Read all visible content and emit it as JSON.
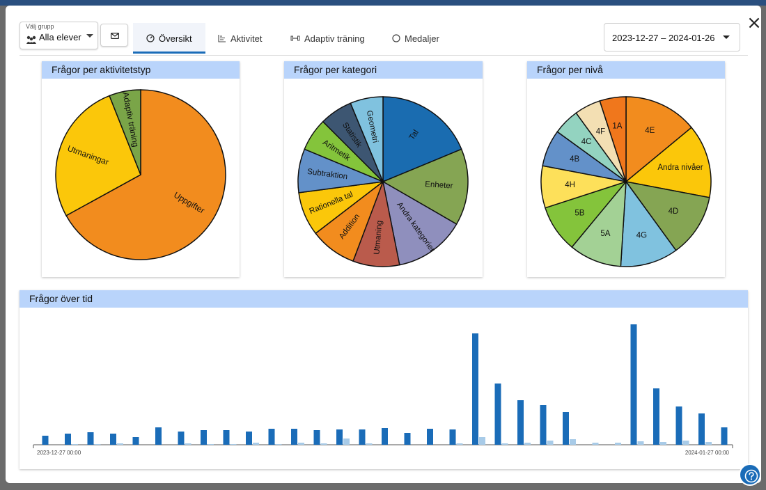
{
  "header": {
    "group_label": "Välj grupp",
    "group_value": "Alla elever",
    "date_range": "2023-12-27 – 2024-01-26",
    "tabs": [
      {
        "label": "Översikt",
        "icon": "gauge-icon",
        "active": true
      },
      {
        "label": "Aktivitet",
        "icon": "chart-icon",
        "active": false
      },
      {
        "label": "Adaptiv träning",
        "icon": "dumbbell-icon",
        "active": false
      },
      {
        "label": "Medaljer",
        "icon": "medal-icon",
        "active": false
      }
    ]
  },
  "colors": {
    "accent": "#1a6cb8",
    "card_header": "#b9d4fb",
    "bar_dark": "#1a6cb8",
    "bar_light": "#a8cbe8"
  },
  "chart_data": [
    {
      "type": "pie",
      "title": "Frågor per aktivitetstyp",
      "slices": [
        {
          "label": "Uppgifter",
          "value": 67,
          "color": "#f28c1e"
        },
        {
          "label": "Utmaningar",
          "value": 27,
          "color": "#fbc70a"
        },
        {
          "label": "Adaptiv träning",
          "value": 6,
          "color": "#7aa548"
        }
      ]
    },
    {
      "type": "pie",
      "title": "Frågor per kategori",
      "slices": [
        {
          "label": "Tal",
          "value": 18,
          "color": "#1a6cb0"
        },
        {
          "label": "Enheter",
          "value": 14,
          "color": "#85a553"
        },
        {
          "label": "Andra kategorier",
          "value": 13,
          "color": "#8f8fbd"
        },
        {
          "label": "Utmaning",
          "value": 8.5,
          "color": "#ba5b4c"
        },
        {
          "label": "Addition",
          "value": 8.5,
          "color": "#f28c1e"
        },
        {
          "label": "Rationella tal",
          "value": 8,
          "color": "#fbc70a"
        },
        {
          "label": "Subtraktion",
          "value": 8,
          "color": "#6391c9"
        },
        {
          "label": "Aritmetik",
          "value": 6,
          "color": "#84c43b"
        },
        {
          "label": "Statistik",
          "value": 6,
          "color": "#3d5672"
        },
        {
          "label": "Geometri",
          "value": 6,
          "color": "#80c2df"
        }
      ]
    },
    {
      "type": "pie",
      "title": "Frågor per nivå",
      "slices": [
        {
          "label": "4E",
          "value": 14,
          "color": "#f28c1e"
        },
        {
          "label": "Andra nivåer",
          "value": 14,
          "color": "#fbc70a"
        },
        {
          "label": "4D",
          "value": 12,
          "color": "#85a553"
        },
        {
          "label": "4G",
          "value": 11,
          "color": "#80c2df"
        },
        {
          "label": "5A",
          "value": 10,
          "color": "#a3d195"
        },
        {
          "label": "5B",
          "value": 9,
          "color": "#84c43b"
        },
        {
          "label": "4H",
          "value": 8,
          "color": "#fde05a"
        },
        {
          "label": "4B",
          "value": 7,
          "color": "#6391c9"
        },
        {
          "label": "4C",
          "value": 5,
          "color": "#93d3c0"
        },
        {
          "label": "4F",
          "value": 5,
          "color": "#f3dfb3"
        },
        {
          "label": "1A",
          "value": 5,
          "color": "#f0771c"
        }
      ]
    },
    {
      "type": "bar",
      "title": "Frågor över tid",
      "x_start_label": "2023-12-27 00:00",
      "x_end_label": "2024-01-27 00:00",
      "series": [
        {
          "values": [
            13,
            16,
            18,
            16,
            11,
            25,
            19,
            21,
            21,
            19,
            23,
            23,
            21,
            22,
            22,
            24,
            17,
            23,
            22,
            160,
            88,
            64,
            57,
            47,
            0,
            0,
            173,
            81,
            55,
            45,
            25
          ]
        },
        {
          "values": [
            0,
            1,
            1,
            2,
            0,
            0,
            2,
            1,
            1,
            3,
            1,
            3,
            2,
            9,
            2,
            0,
            0,
            0,
            2,
            11,
            2,
            3,
            6,
            8,
            3,
            3,
            5,
            4,
            6,
            4,
            0
          ]
        }
      ]
    }
  ]
}
